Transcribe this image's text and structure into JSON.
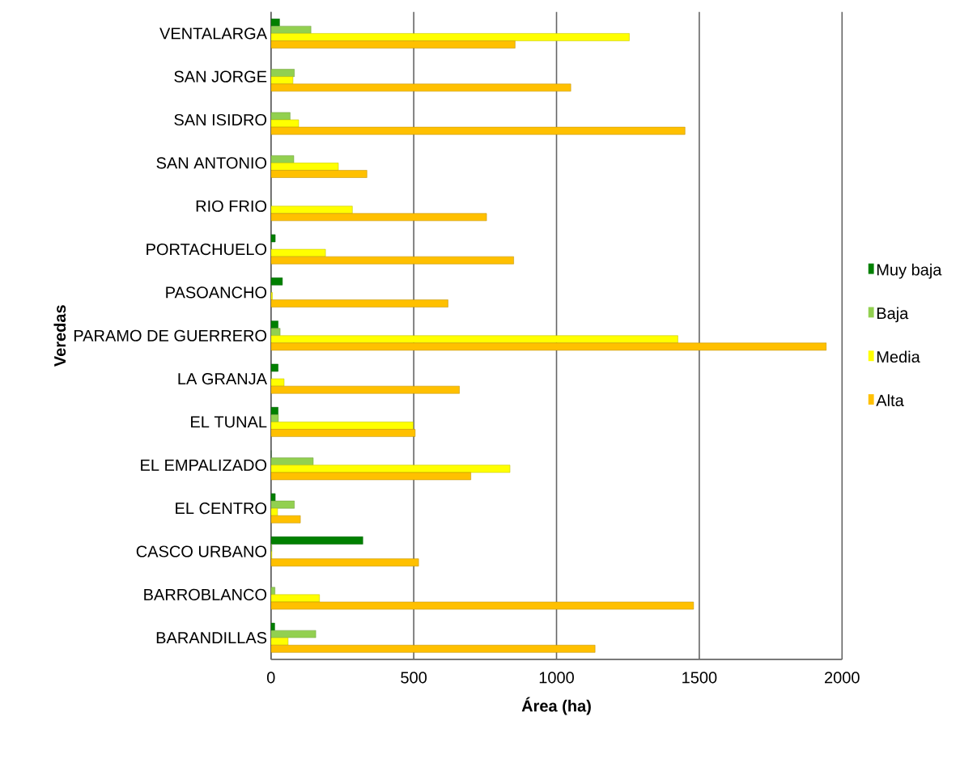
{
  "chart_data": {
    "type": "bar",
    "orientation": "horizontal",
    "xlabel": "Área (ha)",
    "ylabel": "Veredas",
    "categories": [
      "VENTALARGA",
      "SAN JORGE",
      "SAN ISIDRO",
      "SAN ANTONIO",
      "RIO FRIO",
      "PORTACHUELO",
      "PASOANCHO",
      "PARAMO DE GUERRERO",
      "LA GRANJA",
      "EL TUNAL",
      "EL EMPALIZADO",
      "EL CENTRO",
      "CASCO URBANO",
      "BARROBLANCO",
      "BARANDILLAS"
    ],
    "series": [
      {
        "name": "Muy baja",
        "color": "#008000",
        "values": [
          30,
          null,
          null,
          null,
          null,
          15,
          40,
          25,
          25,
          25,
          0,
          15,
          322,
          null,
          13
        ]
      },
      {
        "name": "Baja",
        "color": "#92d050",
        "values": [
          140,
          82,
          67,
          80,
          0,
          0,
          0,
          32,
          0,
          26,
          148,
          82,
          3,
          14,
          157
        ]
      },
      {
        "name": "Media",
        "color": "#ffff00",
        "values": [
          1255,
          77,
          97,
          236,
          285,
          191,
          5,
          1425,
          46,
          498,
          837,
          23,
          3,
          170,
          60
        ]
      },
      {
        "name": "Alta",
        "color": "#ffc000",
        "values": [
          855,
          1050,
          1450,
          336,
          755,
          850,
          620,
          1945,
          660,
          505,
          700,
          103,
          517,
          1480,
          1135
        ]
      }
    ],
    "xlim": [
      0,
      2000
    ],
    "xticks": [
      0,
      500,
      1000,
      1500,
      2000
    ],
    "grid": "x",
    "legend": "right"
  }
}
